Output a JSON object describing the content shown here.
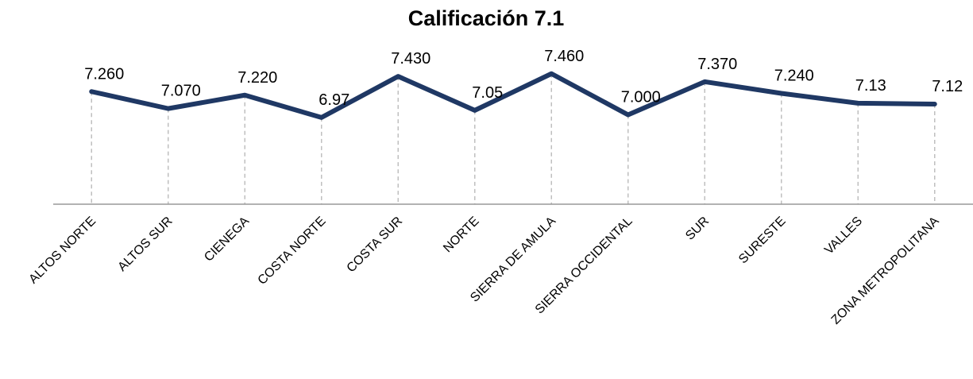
{
  "chart_data": {
    "type": "line",
    "title": "Calificación 7.1",
    "categories": [
      "ALTOS NORTE",
      "ALTOS SUR",
      "CIENEGA",
      "COSTA NORTE",
      "COSTA SUR",
      "NORTE",
      "SIERRA DE AMULA",
      "SIERRA OCCIDENTAL",
      "SUR",
      "SURESTE",
      "VALLES",
      "ZONA METROPOLITANA"
    ],
    "values": [
      7.26,
      7.07,
      7.22,
      6.97,
      7.43,
      7.05,
      7.46,
      7.0,
      7.37,
      7.24,
      7.13,
      7.12
    ],
    "value_labels": [
      "7.260",
      "7.070",
      "7.220",
      "6.97",
      "7.430",
      "7.05",
      "7.460",
      "7.000",
      "7.370",
      "7.240",
      "7.13",
      "7.12"
    ],
    "color": "#1f3864",
    "ylim": [
      6,
      8
    ]
  }
}
